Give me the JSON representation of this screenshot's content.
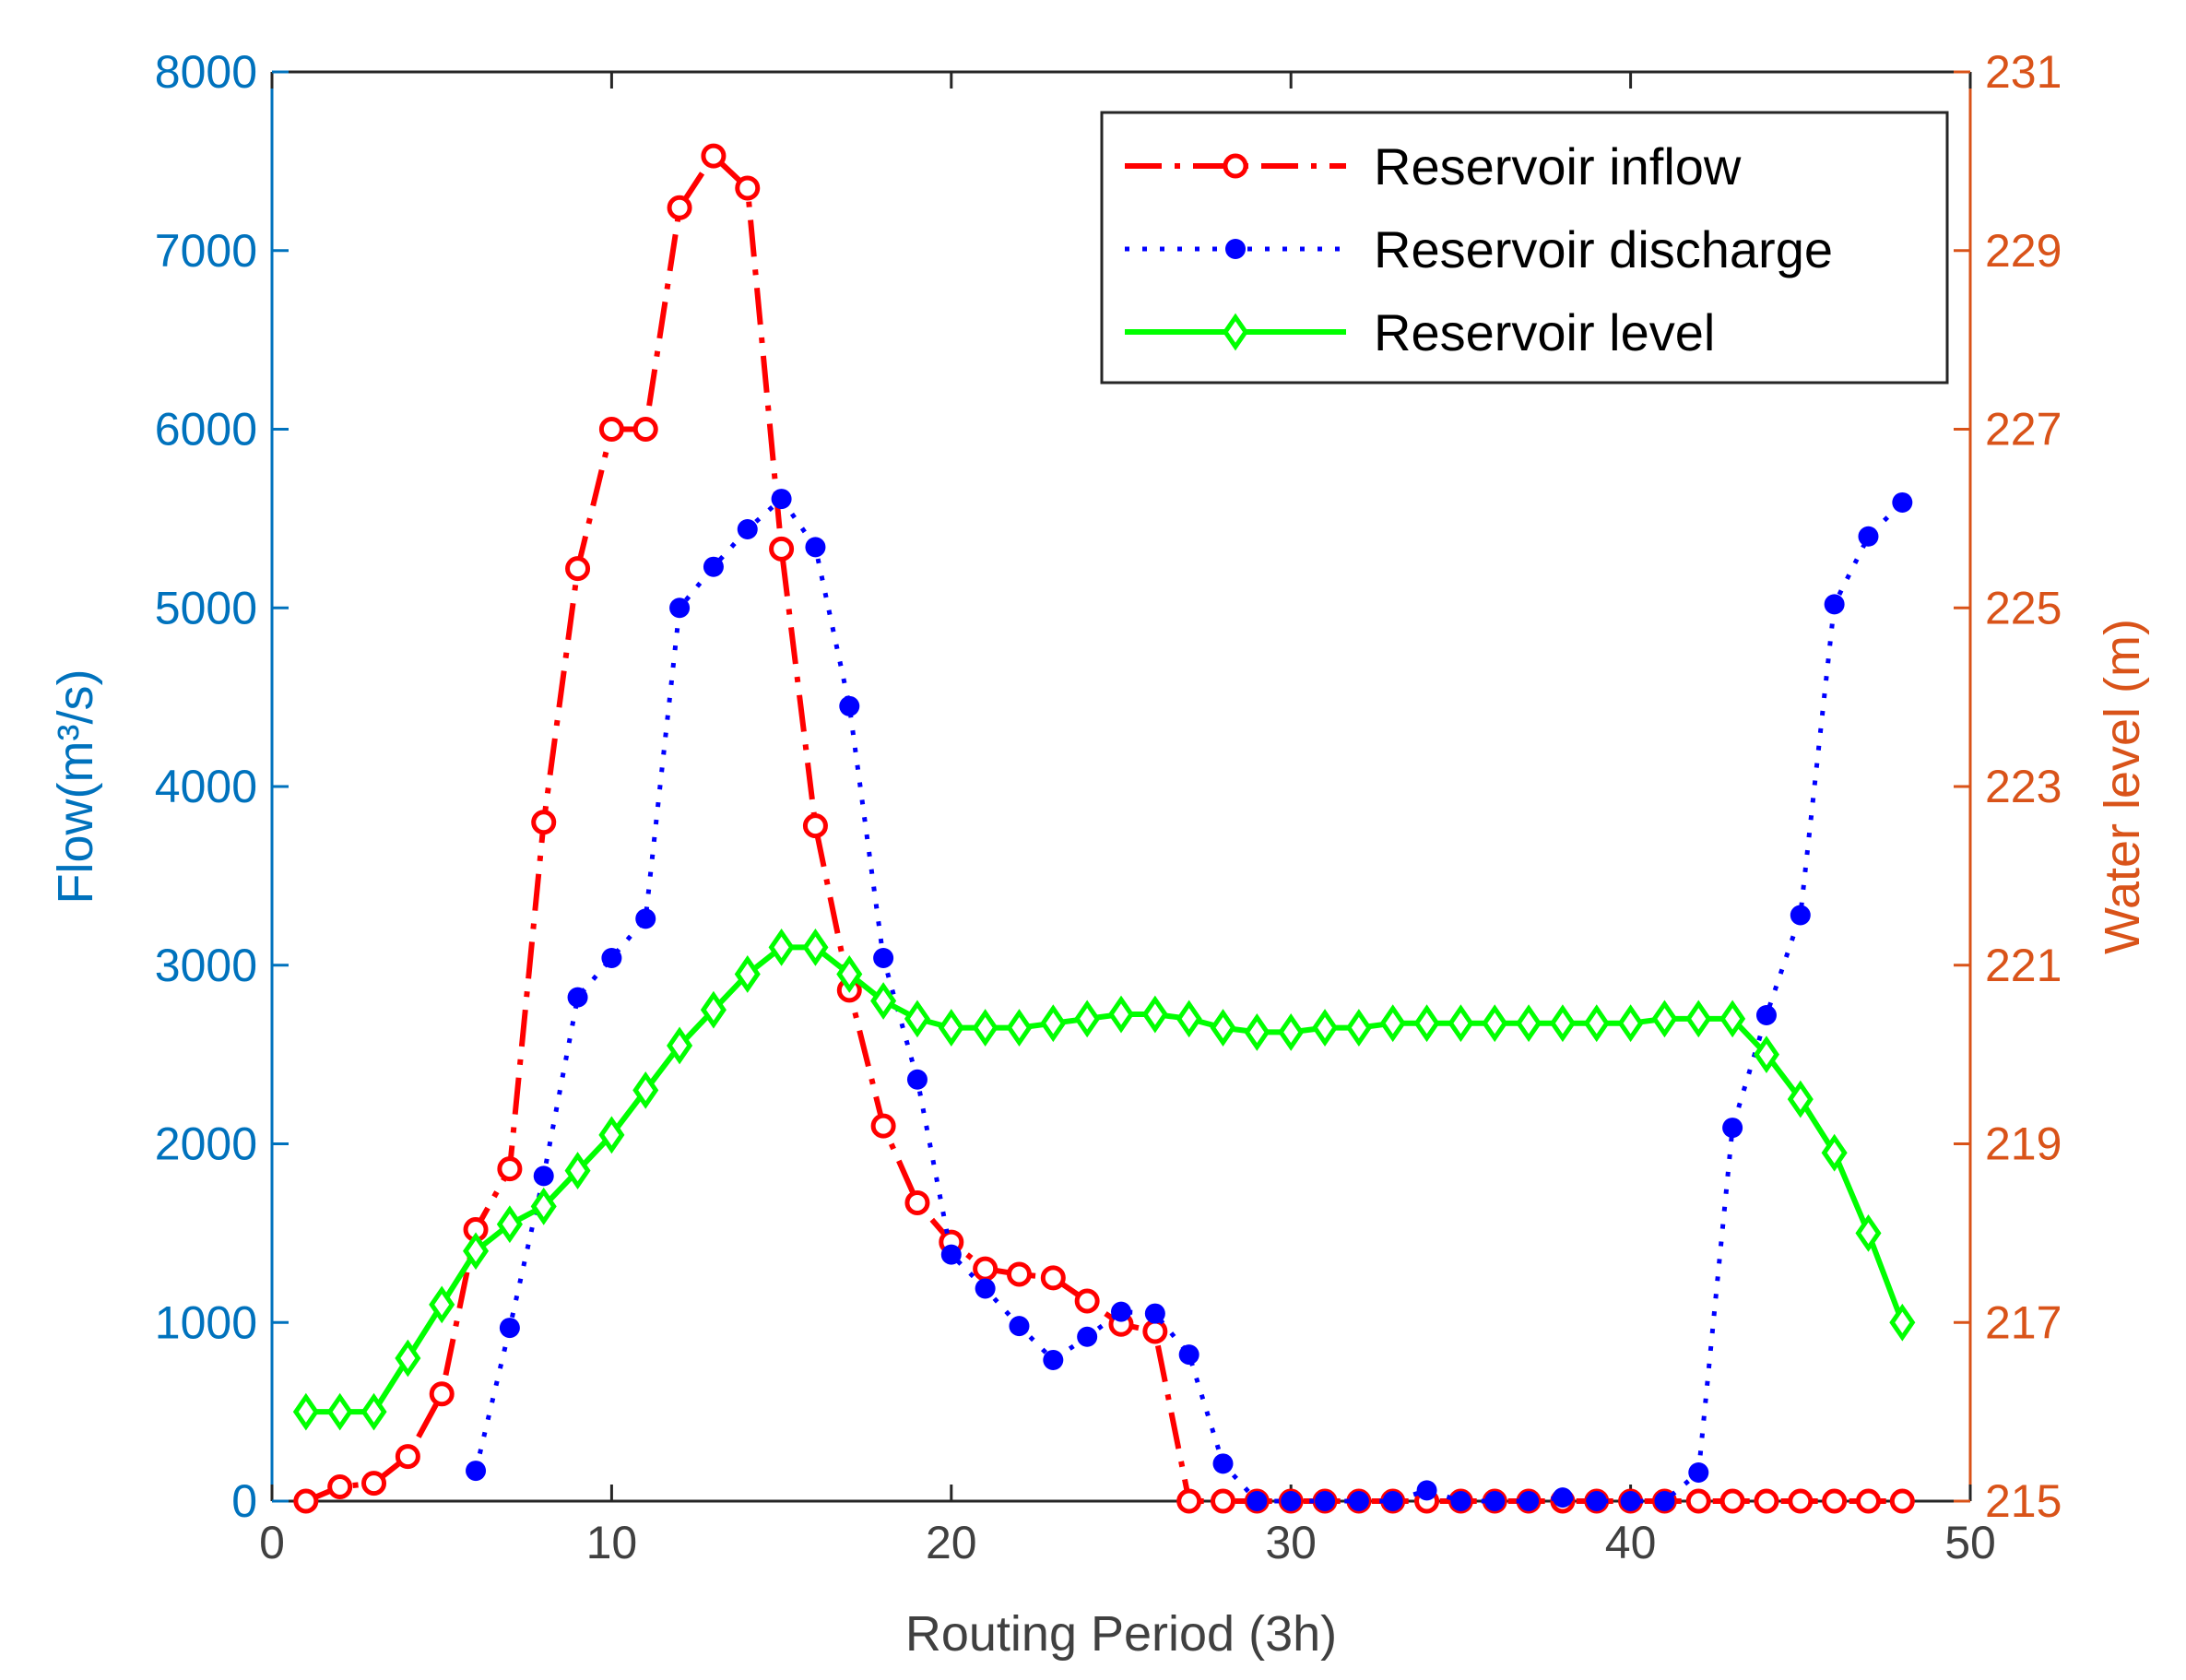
{
  "chart_data": {
    "type": "line",
    "title": "",
    "xlabel": "Routing Period (3h)",
    "ylabel_left": "Flow(m³/s)",
    "ylabel_right": "Water level (m)",
    "xlim": [
      0,
      50
    ],
    "ylim_left": [
      0,
      8000
    ],
    "ylim_right": [
      215,
      231
    ],
    "x_ticks": [
      "0",
      "10",
      "20",
      "30",
      "40",
      "50"
    ],
    "y_left_ticks": [
      "0",
      "1000",
      "2000",
      "3000",
      "4000",
      "5000",
      "6000",
      "7000",
      "8000"
    ],
    "y_right_ticks": [
      "215",
      "217",
      "219",
      "221",
      "223",
      "225",
      "227",
      "229",
      "231"
    ],
    "grid": false,
    "legend_position": "top-right",
    "colors": {
      "left_axis": "#0072BD",
      "right_axis": "#D95319",
      "x_axis": "#404040",
      "inflow": "#FF0000",
      "discharge": "#0000FF",
      "level": "#00FF00"
    },
    "series": [
      {
        "name": "Reservoir inflow",
        "axis": "left",
        "style": "dash-dot",
        "marker": "circle",
        "x": [
          1,
          2,
          3,
          4,
          5,
          6,
          7,
          8,
          9,
          10,
          11,
          12,
          13,
          14,
          15,
          16,
          17,
          18,
          19,
          20,
          21,
          22,
          23,
          24,
          25,
          26,
          27,
          28,
          29,
          30,
          31,
          32,
          33,
          34,
          35,
          36,
          37,
          38,
          39,
          40,
          41,
          42,
          43,
          44,
          45,
          46,
          47,
          48
        ],
        "values": [
          0,
          80,
          100,
          250,
          600,
          1520,
          1860,
          3800,
          5220,
          6000,
          6000,
          7240,
          7530,
          7350,
          5330,
          3780,
          2860,
          2100,
          1670,
          1450,
          1300,
          1270,
          1250,
          1120,
          990,
          950,
          0,
          0,
          0,
          0,
          0,
          0,
          0,
          0,
          0,
          0,
          0,
          0,
          0,
          0,
          0,
          0,
          0,
          0,
          0,
          0,
          0,
          0
        ]
      },
      {
        "name": "Reservoir discharge",
        "axis": "left",
        "style": "dotted",
        "marker": "dot",
        "x": [
          6,
          7,
          8,
          9,
          10,
          11,
          12,
          13,
          14,
          15,
          16,
          17,
          18,
          19,
          20,
          21,
          22,
          23,
          24,
          25,
          26,
          27,
          28,
          29,
          30,
          31,
          32,
          33,
          34,
          35,
          36,
          37,
          38,
          39,
          40,
          41,
          42,
          43,
          44,
          45,
          46,
          47,
          48
        ],
        "values": [
          170,
          970,
          1820,
          2820,
          3040,
          3260,
          5000,
          5230,
          5440,
          5610,
          5340,
          4450,
          3040,
          2360,
          1380,
          1190,
          980,
          790,
          920,
          1060,
          1050,
          820,
          210,
          0,
          0,
          0,
          0,
          0,
          60,
          0,
          0,
          0,
          20,
          0,
          0,
          0,
          160,
          2090,
          2720,
          3280,
          5020,
          5400,
          5590
        ]
      },
      {
        "name": "Reservoir level",
        "axis": "right",
        "style": "solid",
        "marker": "diamond",
        "x": [
          1,
          2,
          3,
          4,
          5,
          6,
          7,
          8,
          9,
          10,
          11,
          12,
          13,
          14,
          15,
          16,
          17,
          18,
          19,
          20,
          21,
          22,
          23,
          24,
          25,
          26,
          27,
          28,
          29,
          30,
          31,
          32,
          33,
          34,
          35,
          36,
          37,
          38,
          39,
          40,
          41,
          42,
          43,
          44,
          45,
          46,
          47,
          48
        ],
        "values": [
          216.0,
          216.0,
          216.0,
          216.6,
          217.2,
          217.8,
          218.1,
          218.3,
          218.7,
          219.1,
          219.6,
          220.1,
          220.5,
          220.9,
          221.2,
          221.2,
          220.9,
          220.6,
          220.4,
          220.3,
          220.3,
          220.3,
          220.35,
          220.4,
          220.45,
          220.45,
          220.4,
          220.3,
          220.25,
          220.25,
          220.3,
          220.3,
          220.35,
          220.35,
          220.35,
          220.35,
          220.35,
          220.35,
          220.35,
          220.35,
          220.4,
          220.4,
          220.4,
          220.0,
          219.5,
          218.9,
          218.0,
          217.0
        ]
      }
    ]
  }
}
